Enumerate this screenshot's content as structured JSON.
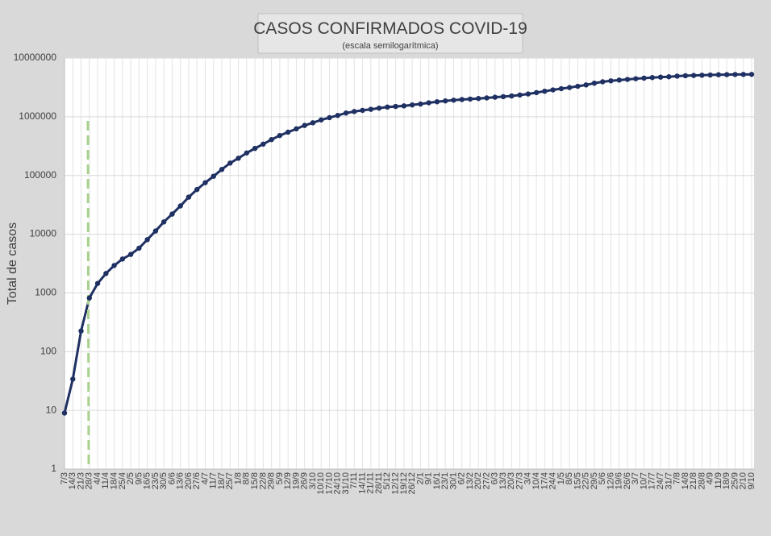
{
  "chart_data": {
    "type": "line",
    "title": "CASOS CONFIRMADOS COVID-19",
    "subtitle": "(escala semilogarítmica)",
    "y_label": "Total de casos",
    "log_scale": true,
    "grid": true,
    "ylim": [
      1,
      10000000
    ],
    "yticks": [
      1,
      10,
      100,
      1000,
      10000,
      100000,
      1000000,
      10000000
    ],
    "categories": [
      "7/3",
      "14/3",
      "21/3",
      "28/3",
      "4/4",
      "11/4",
      "18/4",
      "25/4",
      "2/5",
      "9/5",
      "16/5",
      "23/5",
      "30/5",
      "6/6",
      "13/6",
      "20/6",
      "27/6",
      "4/7",
      "11/7",
      "18/7",
      "25/7",
      "1/8",
      "8/8",
      "15/8",
      "22/8",
      "29/8",
      "5/9",
      "12/9",
      "19/9",
      "26/9",
      "3/10",
      "10/10",
      "17/10",
      "24/10",
      "31/10",
      "7/11",
      "14/11",
      "21/11",
      "28/11",
      "5/12",
      "12/12",
      "19/12",
      "26/12",
      "2/1",
      "9/1",
      "16/1",
      "23/1",
      "30/1",
      "6/2",
      "13/2",
      "20/2",
      "27/2",
      "6/3",
      "13/3",
      "20/3",
      "27/3",
      "3/4",
      "10/4",
      "17/4",
      "24/4",
      "1/5",
      "8/5",
      "15/5",
      "22/5",
      "29/5",
      "5/6",
      "12/6",
      "19/6",
      "26/6",
      "3/7",
      "10/7",
      "17/7",
      "24/7",
      "31/7",
      "7/8",
      "14/8",
      "21/8",
      "28/8",
      "4/9",
      "11/9",
      "18/9",
      "25/9",
      "2/10",
      "9/10"
    ],
    "series": [
      {
        "name": "Casos confirmados",
        "color": "#1f3062",
        "values": [
          9,
          34,
          225,
          820,
          1450,
          2140,
          2930,
          3780,
          4530,
          5780,
          8070,
          11350,
          16200,
          22000,
          30300,
          42800,
          57700,
          75400,
          97000,
          126700,
          162500,
          196500,
          241800,
          289100,
          342100,
          408400,
          478800,
          546500,
          622900,
          711300,
          790100,
          883900,
          965600,
          1053000,
          1157000,
          1228000,
          1285000,
          1339000,
          1402000,
          1463000,
          1498000,
          1531000,
          1590000,
          1648000,
          1730000,
          1800000,
          1862000,
          1915000,
          1965000,
          2002000,
          2045000,
          2093000,
          2150000,
          2201000,
          2260000,
          2349000,
          2443000,
          2578000,
          2720000,
          2866000,
          3005000,
          3147000,
          3306000,
          3482000,
          3732000,
          3939000,
          4093000,
          4213000,
          4324000,
          4447000,
          4547000,
          4647000,
          4730000,
          4800000,
          4920000,
          5000000,
          5050000,
          5100000,
          5140000,
          5190000,
          5220000,
          5250000,
          5260000,
          5270000
        ]
      }
    ]
  }
}
